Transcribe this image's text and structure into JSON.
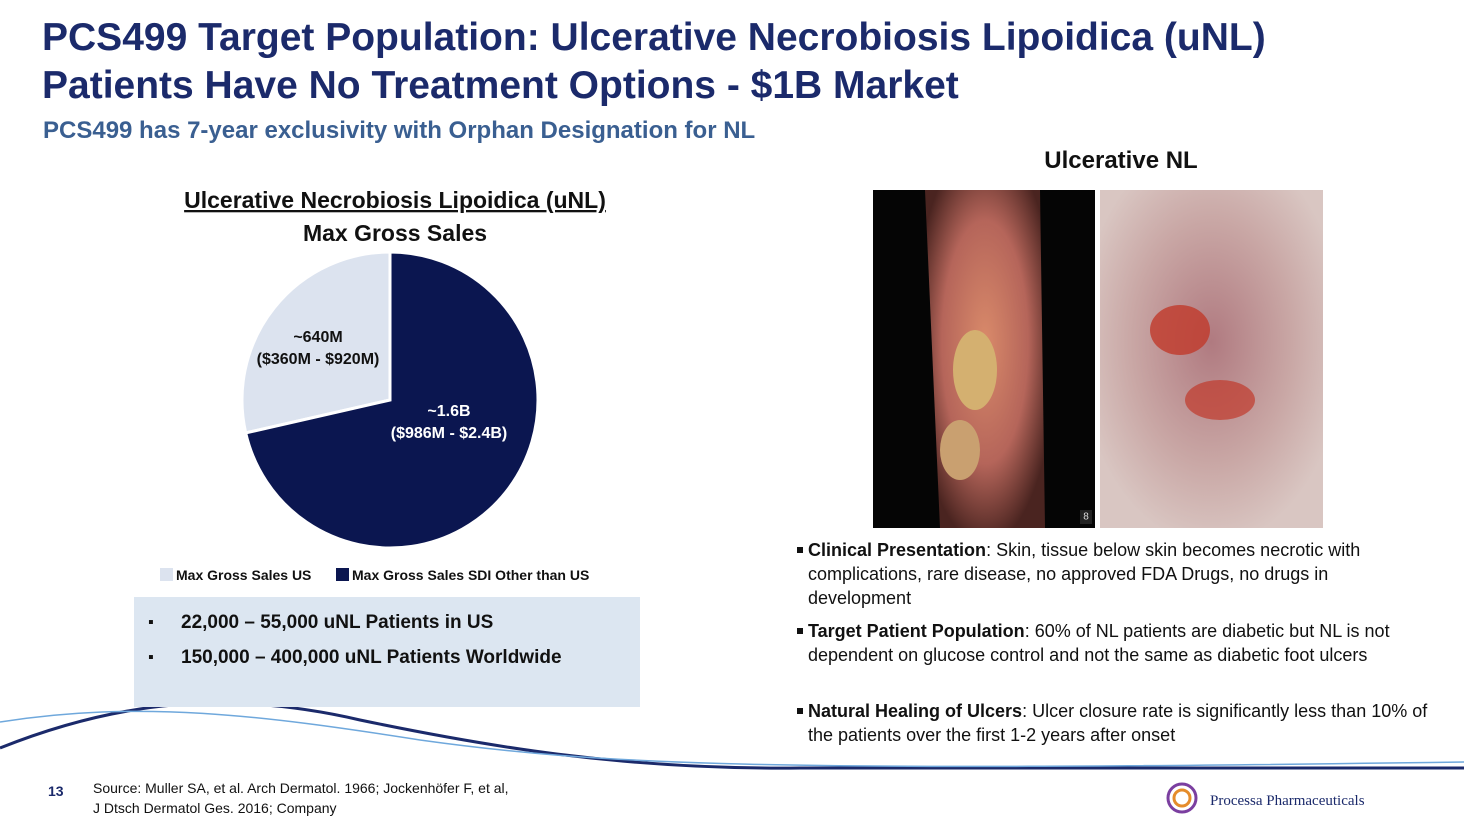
{
  "title_lines": [
    "PCS499 Target Population: Ulcerative Necrobiosis Lipoidica (uNL)",
    "Patients Have No Treatment Options - $1B Market"
  ],
  "subtitle": "PCS499 has 7-year exclusivity with Orphan Designation for NL",
  "chart_data": {
    "type": "pie",
    "title_lines": [
      "Ulcerative Necrobiosis Lipoidica (uNL)",
      "Max Gross Sales"
    ],
    "categories": [
      "Max Gross Sales US",
      "Max Gross Sales SDI Other than US"
    ],
    "values": [
      640,
      1600
    ],
    "value_labels": [
      "~640M",
      "~1.6B"
    ],
    "range_labels": [
      "($360M - $920M)",
      "($986M - $2.4B)"
    ],
    "colors": [
      "#dce3ef",
      "#0b1650"
    ],
    "legend": "bottom"
  },
  "stats": [
    "22,000 – 55,000 uNL Patients in US",
    "150,000 – 400,000 uNL Patients Worldwide"
  ],
  "image_title": "Ulcerative NL",
  "image_badge": "8",
  "bullets": [
    {
      "term": "Clinical Presentation",
      "text": ": Skin, tissue below skin becomes necrotic with complications, rare disease, no approved FDA Drugs, no drugs in development"
    },
    {
      "term": "Target Patient Population",
      "text": ": 60% of NL patients are diabetic but NL is not dependent on glucose control and not  the same as diabetic foot ulcers"
    },
    {
      "term": "Natural Healing of Ulcers",
      "text": ": Ulcer closure rate is significantly less than 10% of the patients over the first 1-2 years after onset"
    }
  ],
  "page_number": "13",
  "source_lines": [
    "Source: Muller SA, et al. Arch Dermatol. 1966; Jockenhöfer F, et al,",
    "J Dtsch Dermatol Ges. 2016; Company"
  ],
  "company": "Processa Pharmaceuticals"
}
